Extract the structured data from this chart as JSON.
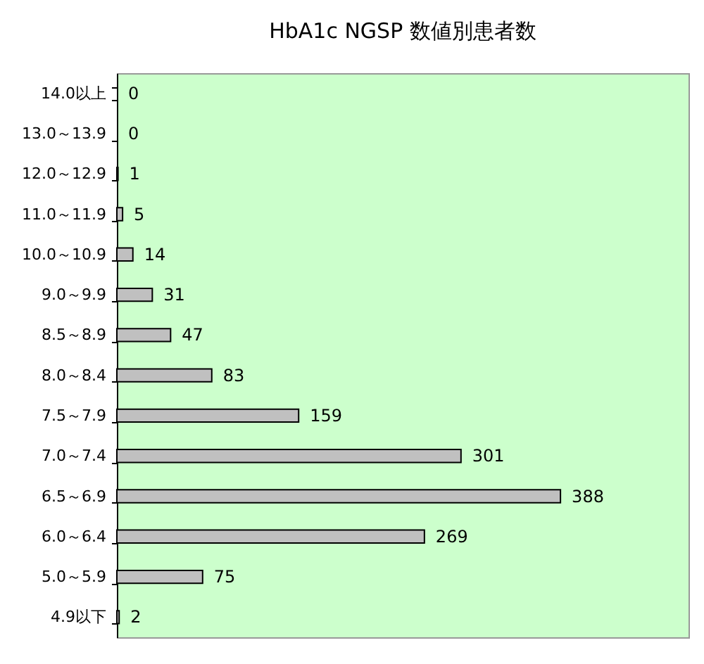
{
  "chart_data": {
    "type": "bar",
    "orientation": "horizontal",
    "title": "HbA1c NGSP 数値別患者数",
    "categories": [
      "14.0以上",
      "13.0～13.9",
      "12.0～12.9",
      "11.0～11.9",
      "10.0～10.9",
      "9.0～9.9",
      "8.5～8.9",
      "8.0～8.4",
      "7.5～7.9",
      "7.0～7.4",
      "6.5～6.9",
      "6.0～6.4",
      "5.0～5.9",
      "4.9以下"
    ],
    "values": [
      0,
      0,
      1,
      5,
      14,
      31,
      47,
      83,
      159,
      301,
      388,
      269,
      75,
      2
    ],
    "color": "#c0c0c0",
    "xlim": [
      0,
      500
    ],
    "data_labels": true,
    "tick_labels": "y",
    "grid": false
  }
}
